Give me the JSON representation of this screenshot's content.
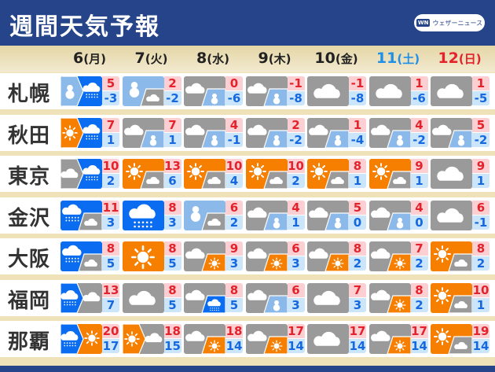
{
  "header": {
    "title": "週間天気予報",
    "logo_text": "ウェザーニュース",
    "logo_mark": "WN"
  },
  "colors": {
    "sunny": "#f77f00",
    "cloudy": "#9a9a9a",
    "rain": "#0a6cf0",
    "snow": "#8ab9ea",
    "header": "#25448a"
  },
  "days": [
    {
      "num": "6",
      "dow": "(月)",
      "color": "#222222"
    },
    {
      "num": "7",
      "dow": "(火)",
      "color": "#222222"
    },
    {
      "num": "8",
      "dow": "(水)",
      "color": "#222222"
    },
    {
      "num": "9",
      "dow": "(木)",
      "color": "#222222"
    },
    {
      "num": "10",
      "dow": "(金)",
      "color": "#222222"
    },
    {
      "num": "11",
      "dow": "(土)",
      "color": "#1e90e8"
    },
    {
      "num": "12",
      "dow": "(日)",
      "color": "#e3222b"
    }
  ],
  "cities": [
    {
      "name": "札幌",
      "forecast": [
        {
          "w": "snow",
          "mode": "then",
          "w2": "rain",
          "hi": "5",
          "lo": "-3"
        },
        {
          "w": "snow",
          "mode": "sometimes",
          "w2": "cloudy",
          "hi": "2",
          "lo": "-2"
        },
        {
          "w": "cloudy",
          "mode": "sometimes",
          "w2": "snow",
          "hi": "0",
          "lo": "-6"
        },
        {
          "w": "cloudy",
          "mode": "sometimes",
          "w2": "snow",
          "hi": "-1",
          "lo": "-8"
        },
        {
          "w": "cloudy",
          "mode": "single",
          "hi": "-1",
          "lo": "-8"
        },
        {
          "w": "cloudy",
          "mode": "single",
          "hi": "1",
          "lo": "-6"
        },
        {
          "w": "cloudy",
          "mode": "single",
          "hi": "1",
          "lo": "-5"
        }
      ]
    },
    {
      "name": "秋田",
      "forecast": [
        {
          "w": "sunny",
          "mode": "then",
          "w2": "rain",
          "hi": "7",
          "lo": "1"
        },
        {
          "w": "cloudy",
          "mode": "sometimes",
          "w2": "snow",
          "hi": "7",
          "lo": "1"
        },
        {
          "w": "cloudy",
          "mode": "sometimes",
          "w2": "snow",
          "hi": "4",
          "lo": "-1"
        },
        {
          "w": "cloudy",
          "mode": "sometimes",
          "w2": "snow",
          "hi": "2",
          "lo": "-2"
        },
        {
          "w": "cloudy",
          "mode": "sometimes",
          "w2": "snow",
          "hi": "1",
          "lo": "-4"
        },
        {
          "w": "cloudy",
          "mode": "sometimes",
          "w2": "snow",
          "hi": "4",
          "lo": "-2"
        },
        {
          "w": "cloudy",
          "mode": "sometimes",
          "w2": "snow",
          "hi": "5",
          "lo": "-2"
        }
      ]
    },
    {
      "name": "東京",
      "forecast": [
        {
          "w": "cloudy",
          "mode": "then",
          "w2": "rain",
          "hi": "10",
          "lo": "2"
        },
        {
          "w": "sunny",
          "mode": "sometimes",
          "w2": "cloudy",
          "hi": "13",
          "lo": "6"
        },
        {
          "w": "sunny",
          "mode": "sometimes",
          "w2": "cloudy",
          "hi": "10",
          "lo": "4"
        },
        {
          "w": "sunny",
          "mode": "sometimes",
          "w2": "cloudy",
          "hi": "10",
          "lo": "2"
        },
        {
          "w": "sunny",
          "mode": "sometimes",
          "w2": "cloudy",
          "hi": "8",
          "lo": "1"
        },
        {
          "w": "sunny",
          "mode": "sometimes",
          "w2": "cloudy",
          "hi": "9",
          "lo": "1"
        },
        {
          "w": "cloudy",
          "mode": "single",
          "hi": "9",
          "lo": "1"
        }
      ]
    },
    {
      "name": "金沢",
      "forecast": [
        {
          "w": "rain",
          "mode": "sometimes",
          "w2": "cloudy",
          "hi": "11",
          "lo": "3"
        },
        {
          "w": "rain",
          "mode": "single",
          "hi": "8",
          "lo": "3"
        },
        {
          "w": "snow",
          "mode": "sometimes",
          "w2": "cloudy",
          "hi": "6",
          "lo": "2"
        },
        {
          "w": "cloudy",
          "mode": "sometimes",
          "w2": "snow",
          "hi": "4",
          "lo": "1"
        },
        {
          "w": "cloudy",
          "mode": "sometimes",
          "w2": "snow",
          "hi": "5",
          "lo": "0"
        },
        {
          "w": "cloudy",
          "mode": "sometimes",
          "w2": "snow",
          "hi": "4",
          "lo": "0"
        },
        {
          "w": "cloudy",
          "mode": "single",
          "hi": "6",
          "lo": "-1"
        }
      ]
    },
    {
      "name": "大阪",
      "forecast": [
        {
          "w": "rain",
          "mode": "sometimes",
          "w2": "cloudy",
          "hi": "8",
          "lo": "5"
        },
        {
          "w": "sunny",
          "mode": "single",
          "hi": "8",
          "lo": "5"
        },
        {
          "w": "cloudy",
          "mode": "sometimes",
          "w2": "sunny",
          "hi": "9",
          "lo": "3"
        },
        {
          "w": "cloudy",
          "mode": "sometimes",
          "w2": "sunny",
          "hi": "6",
          "lo": "3"
        },
        {
          "w": "cloudy",
          "mode": "sometimes",
          "w2": "sunny",
          "hi": "8",
          "lo": "2"
        },
        {
          "w": "cloudy",
          "mode": "sometimes",
          "w2": "sunny",
          "hi": "7",
          "lo": "2"
        },
        {
          "w": "sunny",
          "mode": "sometimes",
          "w2": "cloudy",
          "hi": "8",
          "lo": "2"
        }
      ]
    },
    {
      "name": "福岡",
      "forecast": [
        {
          "w": "rain",
          "mode": "then",
          "w2": "cloudy",
          "hi": "13",
          "lo": "7"
        },
        {
          "w": "cloudy",
          "mode": "single",
          "hi": "8",
          "lo": "5"
        },
        {
          "w": "cloudy",
          "mode": "sometimes",
          "w2": "rain",
          "hi": "8",
          "lo": "5"
        },
        {
          "w": "cloudy",
          "mode": "sometimes",
          "w2": "snow",
          "hi": "6",
          "lo": "3"
        },
        {
          "w": "cloudy",
          "mode": "single",
          "hi": "7",
          "lo": "3"
        },
        {
          "w": "cloudy",
          "mode": "sometimes",
          "w2": "sunny",
          "hi": "8",
          "lo": "2"
        },
        {
          "w": "sunny",
          "mode": "sometimes",
          "w2": "cloudy",
          "hi": "10",
          "lo": "1"
        }
      ]
    },
    {
      "name": "那覇",
      "forecast": [
        {
          "w": "rain",
          "mode": "then",
          "w2": "sunny",
          "hi": "20",
          "lo": "17"
        },
        {
          "w": "sunny",
          "mode": "then",
          "w2": "cloudy",
          "hi": "18",
          "lo": "15"
        },
        {
          "w": "cloudy",
          "mode": "sometimes",
          "w2": "sunny",
          "hi": "18",
          "lo": "14"
        },
        {
          "w": "cloudy",
          "mode": "sometimes",
          "w2": "sunny",
          "hi": "17",
          "lo": "14"
        },
        {
          "w": "cloudy",
          "mode": "single",
          "hi": "17",
          "lo": "14"
        },
        {
          "w": "cloudy",
          "mode": "sometimes",
          "w2": "sunny",
          "hi": "17",
          "lo": "14"
        },
        {
          "w": "sunny",
          "mode": "sometimes",
          "w2": "cloudy",
          "hi": "19",
          "lo": "14"
        }
      ]
    }
  ]
}
